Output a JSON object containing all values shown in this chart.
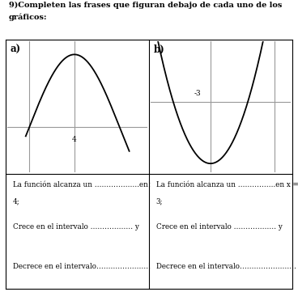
{
  "title_line1": "9)Completen las frases que figuran debajo de cada uno de los",
  "title_line2": "gráficos:",
  "panel_a_label": "a)",
  "panel_b_label": "b)",
  "text_a_line1": "La función alcanza un ……………….en x =",
  "text_a_line1b": "4;",
  "text_a_line2": "Crece en el intervalo ……………… y",
  "text_a_line3": "Decrece en el intervalo……………………",
  "text_b_line1": "La función alcanza un …………….en x = -",
  "text_b_line1b": "3;",
  "text_b_line2": "Crece en el intervalo ……………… y",
  "text_b_line3": "Decrece en el intervalo……………………",
  "label_a_x": "4",
  "label_b_x": "-3",
  "background": "#ffffff",
  "curve_color": "#000000",
  "axis_color": "#999999",
  "text_color": "#000000",
  "border_color": "#000000"
}
